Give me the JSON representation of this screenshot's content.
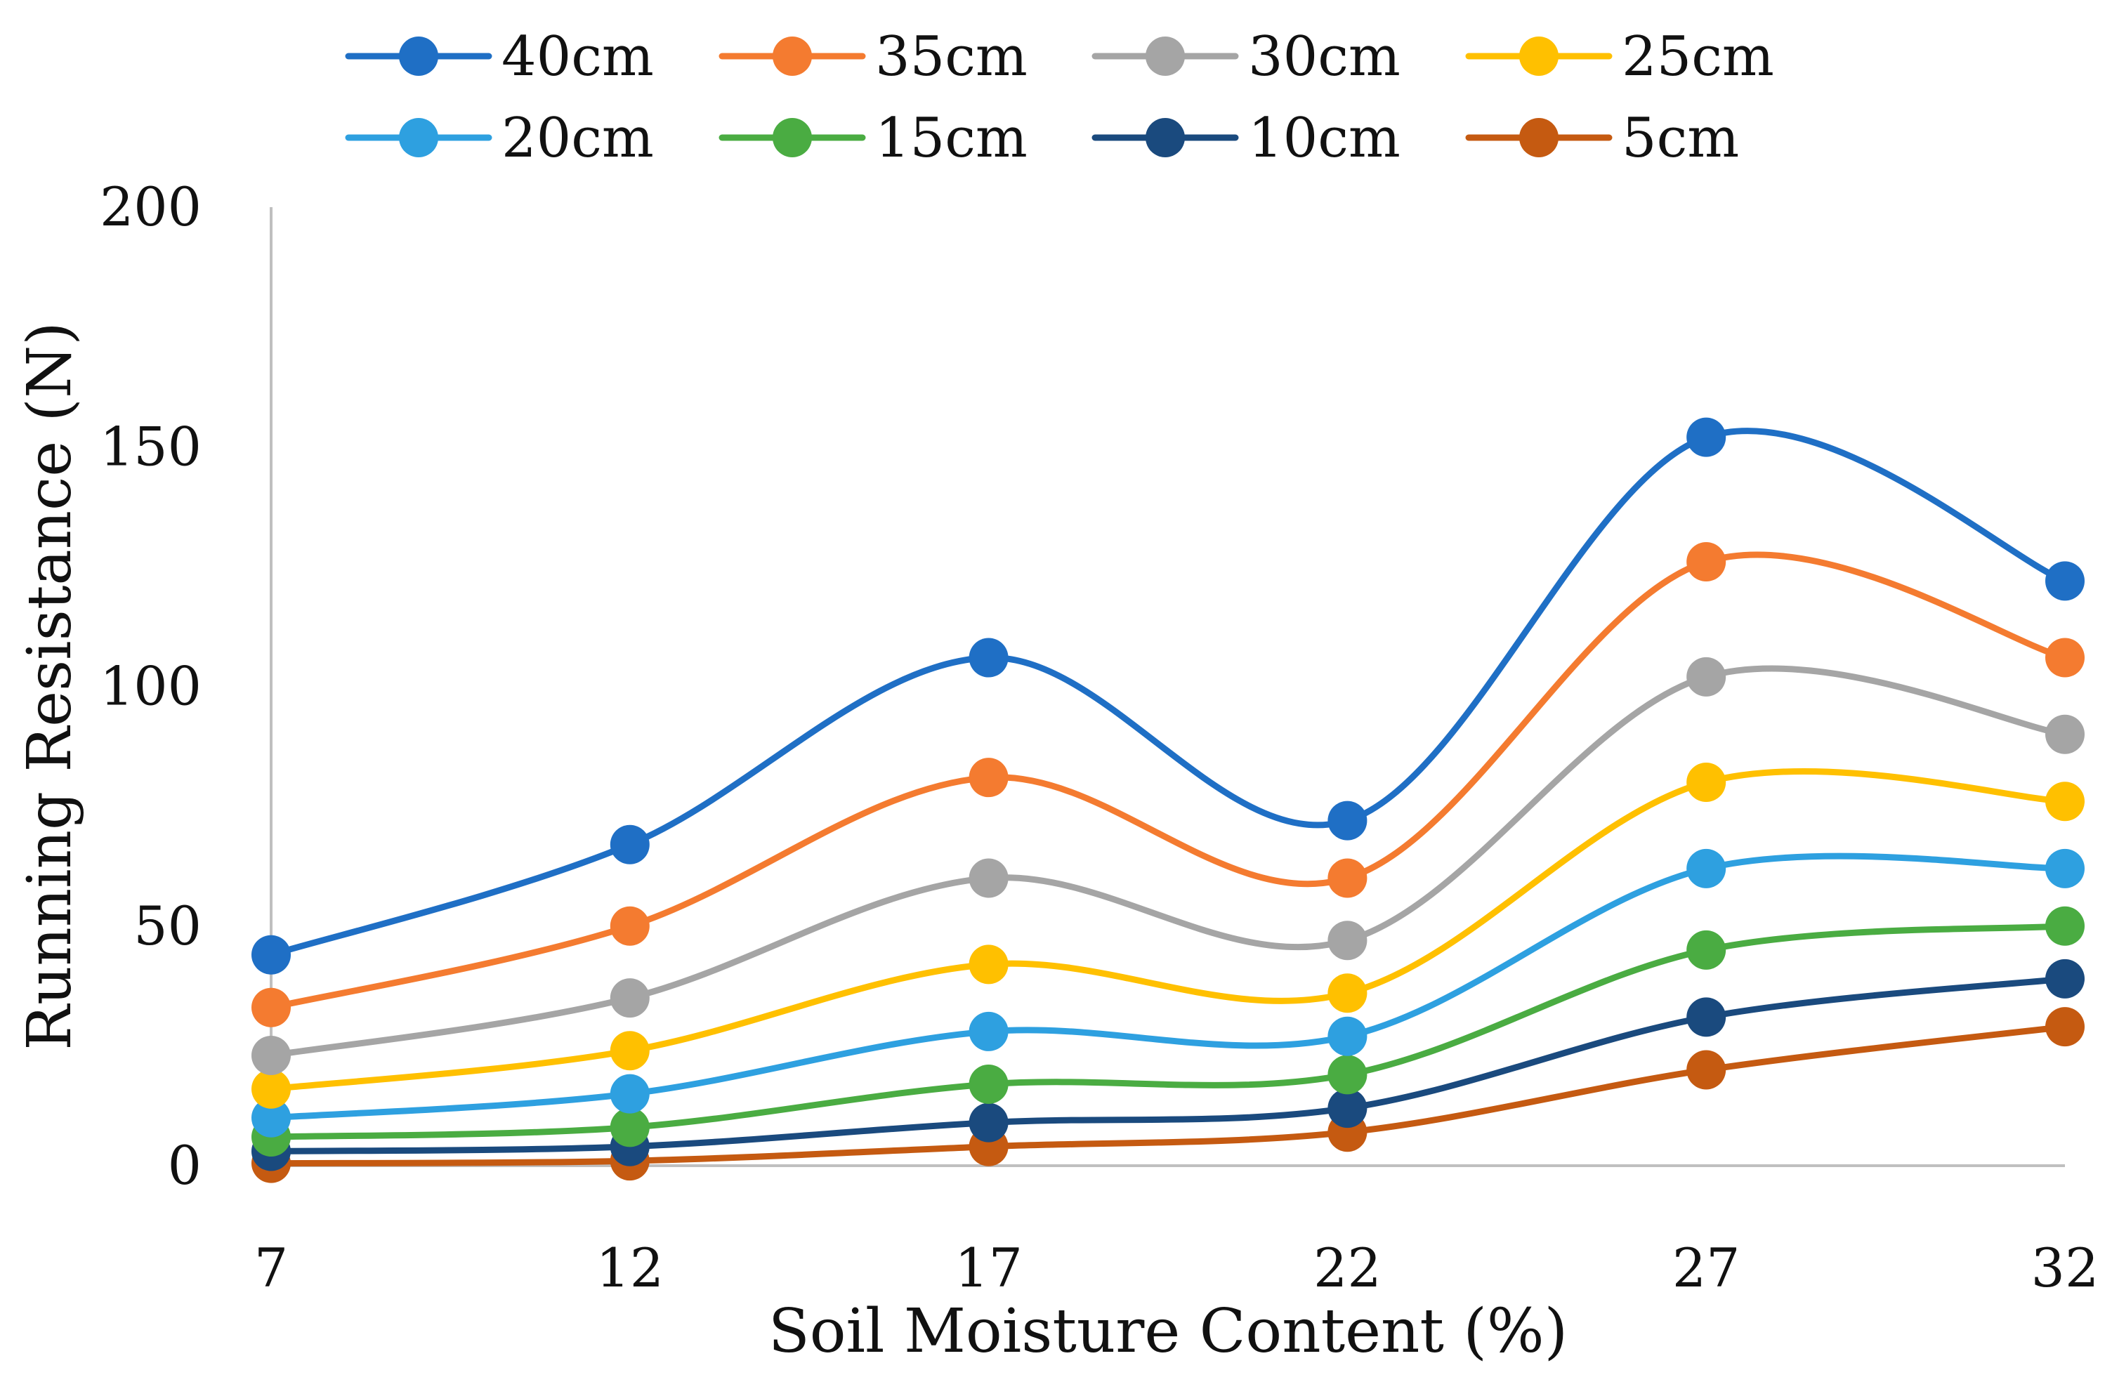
{
  "chart_data": {
    "type": "line",
    "title": "",
    "xlabel": "Soil Moisture Content (%)",
    "ylabel": "Running Resistance (N)",
    "x": [
      7,
      12,
      17,
      22,
      27,
      32
    ],
    "x_tick_labels": [
      "7",
      "12",
      "17",
      "22",
      "27",
      "32"
    ],
    "ylim": [
      0,
      200
    ],
    "y_ticks": [
      0,
      50,
      100,
      150,
      200
    ],
    "y_tick_labels": [
      "0",
      "50",
      "100",
      "150",
      "200"
    ],
    "smooth": true,
    "grid": false,
    "legend_position": "top",
    "series": [
      {
        "name": "40cm",
        "color": "#1f6fc5",
        "values": [
          44,
          67,
          106,
          72,
          152,
          122
        ]
      },
      {
        "name": "35cm",
        "color": "#f47b30",
        "values": [
          33,
          50,
          81,
          60,
          126,
          106
        ]
      },
      {
        "name": "30cm",
        "color": "#a5a5a5",
        "values": [
          23,
          35,
          60,
          47,
          102,
          90
        ]
      },
      {
        "name": "25cm",
        "color": "#ffc000",
        "values": [
          16,
          24,
          42,
          36,
          80,
          76
        ]
      },
      {
        "name": "20cm",
        "color": "#2ea0e0",
        "values": [
          10,
          15,
          28,
          27,
          62,
          62
        ]
      },
      {
        "name": "15cm",
        "color": "#4aac42",
        "values": [
          6,
          8,
          17,
          19,
          45,
          50
        ]
      },
      {
        "name": "10cm",
        "color": "#1a4a7e",
        "values": [
          3,
          4,
          9,
          12,
          31,
          39
        ]
      },
      {
        "name": "5cm",
        "color": "#c55a11",
        "values": [
          0.5,
          1,
          4,
          7,
          20,
          29
        ]
      }
    ]
  }
}
